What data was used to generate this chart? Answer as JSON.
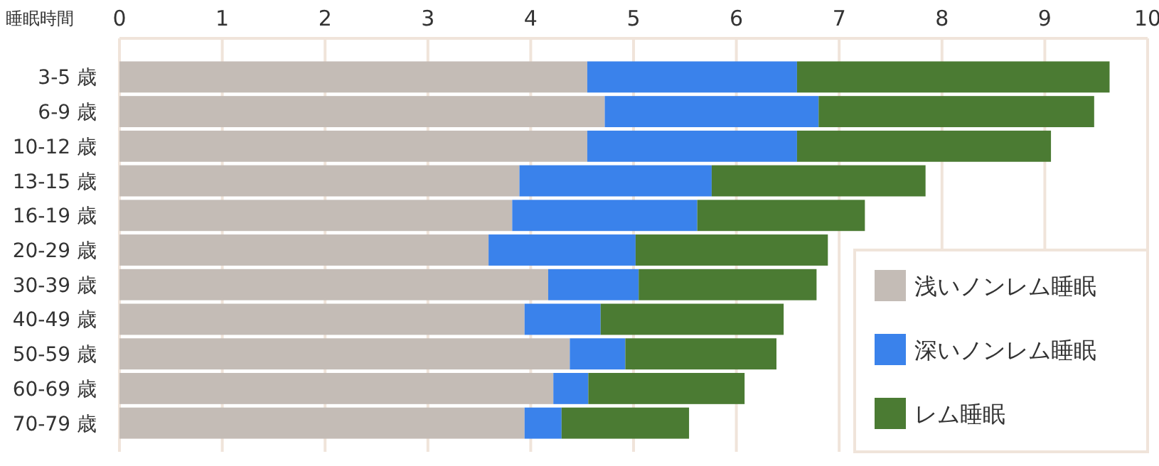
{
  "chart_data": {
    "type": "bar",
    "orientation": "horizontal",
    "stacked": true,
    "xlabel": "睡眠時間",
    "categories": [
      "3-5 歳",
      "6-9 歳",
      "10-12 歳",
      "13-15 歳",
      "16-19 歳",
      "20-29 歳",
      "30-39 歳",
      "40-49 歳",
      "50-59 歳",
      "60-69 歳",
      "70-79 歳"
    ],
    "series": [
      {
        "name": "浅いノンレム睡眠",
        "color": "#c4bcb6",
        "values": [
          4.55,
          4.72,
          4.55,
          3.89,
          3.82,
          3.59,
          4.17,
          3.94,
          4.38,
          4.22,
          3.94
        ]
      },
      {
        "name": "深いノンレム睡眠",
        "color": "#3a82eb",
        "values": [
          2.04,
          2.08,
          2.04,
          1.87,
          1.8,
          1.43,
          0.88,
          0.74,
          0.54,
          0.34,
          0.36
        ]
      },
      {
        "name": "レム睡眠",
        "color": "#4b7b33",
        "values": [
          3.04,
          2.68,
          2.47,
          2.08,
          1.63,
          1.87,
          1.73,
          1.78,
          1.47,
          1.52,
          1.24
        ]
      }
    ],
    "xlim": [
      0,
      10
    ],
    "xticks": [
      0,
      1,
      2,
      3,
      4,
      5,
      6,
      7,
      8,
      9,
      10
    ],
    "grid": "x",
    "legend": "bottom right"
  }
}
